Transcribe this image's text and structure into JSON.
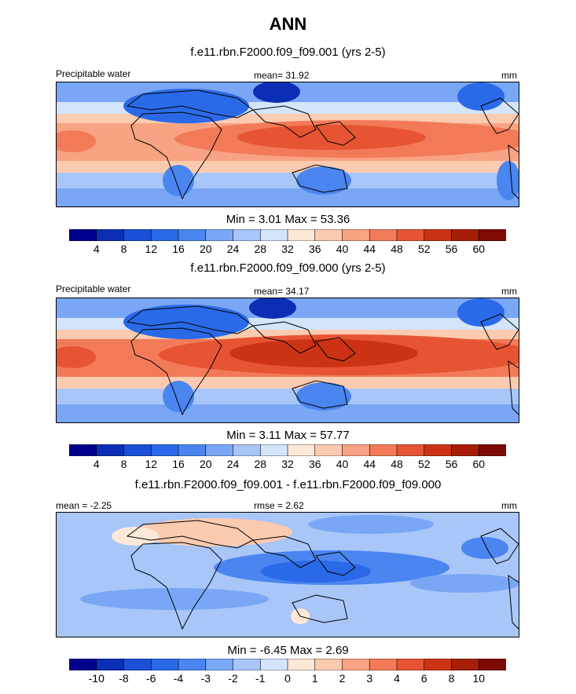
{
  "header": {
    "title": "ANN"
  },
  "chart_data": [
    {
      "type": "heatmap",
      "title": "f.e11.rbn.F2000.f09_f09.001 (yrs 2-5)",
      "left_label": "Precipitable water",
      "center_label": "mean=  31.92",
      "units": "mm",
      "min_max": "Min =   3.01 Max =  53.36",
      "min": 3.01,
      "max": 53.36,
      "mean": 31.92,
      "colorbar": {
        "levels": [
          "4",
          "8",
          "12",
          "16",
          "20",
          "24",
          "28",
          "32",
          "36",
          "40",
          "44",
          "48",
          "52",
          "56",
          "60"
        ],
        "colors": [
          "#00008c",
          "#0a2fb4",
          "#1a4fd8",
          "#2a6ae8",
          "#4a85f0",
          "#79a7f5",
          "#a8c6f8",
          "#d4e4fb",
          "#fde8d8",
          "#fbcbb0",
          "#f8a383",
          "#f37a58",
          "#e65434",
          "#cc3315",
          "#a61e08",
          "#7d0a03"
        ]
      }
    },
    {
      "type": "heatmap",
      "title": "f.e11.rbn.F2000.f09_f09.000 (yrs 2-5)",
      "left_label": "Precipitable water",
      "center_label": "mean=  34.17",
      "units": "mm",
      "min_max": "Min =   3.11 Max =  57.77",
      "min": 3.11,
      "max": 57.77,
      "mean": 34.17,
      "colorbar": {
        "levels": [
          "4",
          "8",
          "12",
          "16",
          "20",
          "24",
          "28",
          "32",
          "36",
          "40",
          "44",
          "48",
          "52",
          "56",
          "60"
        ],
        "colors": [
          "#00008c",
          "#0a2fb4",
          "#1a4fd8",
          "#2a6ae8",
          "#4a85f0",
          "#79a7f5",
          "#a8c6f8",
          "#d4e4fb",
          "#fde8d8",
          "#fbcbb0",
          "#f8a383",
          "#f37a58",
          "#e65434",
          "#cc3315",
          "#a61e08",
          "#7d0a03"
        ]
      }
    },
    {
      "type": "heatmap",
      "title": "f.e11.rbn.F2000.f09_f09.001 - f.e11.rbn.F2000.f09_f09.000",
      "left_label": "mean =  -2.25",
      "center_label": "rmse =   2.62",
      "units": "mm",
      "min_max": "Min =  -6.45 Max =   2.69",
      "min": -6.45,
      "max": 2.69,
      "mean": -2.25,
      "rmse": 2.62,
      "colorbar": {
        "levels": [
          "-10",
          "-8",
          "-6",
          "-4",
          "-3",
          "-2",
          "-1",
          "0",
          "1",
          "2",
          "3",
          "4",
          "6",
          "8",
          "10"
        ],
        "colors": [
          "#00008c",
          "#0a2fb4",
          "#1a4fd8",
          "#2a6ae8",
          "#4a85f0",
          "#79a7f5",
          "#a8c6f8",
          "#d4e4fb",
          "#fde8d8",
          "#fbcbb0",
          "#f8a383",
          "#f37a58",
          "#e65434",
          "#cc3315",
          "#a61e08",
          "#7d0a03"
        ]
      }
    }
  ]
}
